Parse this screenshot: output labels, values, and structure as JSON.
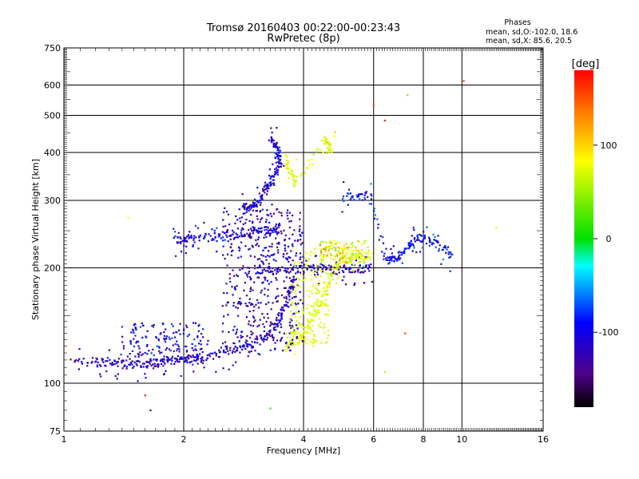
{
  "chart_data": {
    "type": "scatter",
    "title": "Tromsø 20160403 00:22:00-00:23:43",
    "subtitle": "RwPretec (8p)",
    "info_title": "Phases",
    "info_line1": "mean, sd,O:-102.0, 18.6",
    "info_line2": "mean, sd,X:  85.6, 20.5",
    "xlabel": "Frequency [MHz]",
    "ylabel": "Stationary phase Virtual Height [km]",
    "x_scale": "log",
    "y_scale": "log",
    "xlim": [
      1,
      16
    ],
    "ylim": [
      75,
      750
    ],
    "x_ticks": [
      "1",
      "2",
      "4",
      "6",
      "8",
      "10",
      "16"
    ],
    "x_tick_values": [
      1,
      2,
      4,
      6,
      8,
      10,
      16
    ],
    "y_ticks": [
      "75",
      "100",
      "200",
      "300",
      "400",
      "500",
      "600",
      "750"
    ],
    "y_tick_values": [
      75,
      100,
      200,
      300,
      400,
      500,
      600,
      750
    ],
    "grid": true,
    "colorbar": {
      "label": "[deg]",
      "range": [
        -180,
        180
      ],
      "tick_labels": [
        "100",
        "0",
        "-100"
      ],
      "tick_values": [
        100,
        0,
        -100
      ]
    },
    "traces": [
      {
        "name_hint": "O-mode lower trace",
        "phase": -110,
        "points": [
          [
            1.05,
            113
          ],
          [
            1.2,
            114
          ],
          [
            1.3,
            113
          ],
          [
            1.4,
            112
          ],
          [
            1.5,
            112
          ],
          [
            1.6,
            112
          ],
          [
            1.7,
            113
          ],
          [
            1.8,
            114
          ],
          [
            1.9,
            115
          ],
          [
            2.0,
            115
          ],
          [
            2.1,
            116
          ],
          [
            2.2,
            117
          ],
          [
            2.4,
            119
          ],
          [
            2.6,
            121
          ],
          [
            2.8,
            124
          ],
          [
            3.0,
            128
          ],
          [
            3.2,
            134
          ],
          [
            3.4,
            142
          ],
          [
            3.5,
            150
          ],
          [
            3.6,
            162
          ],
          [
            3.7,
            175
          ],
          [
            3.8,
            190
          ]
        ]
      },
      {
        "name_hint": "O-mode F-layer 200km",
        "phase": -110,
        "points": [
          [
            3.0,
            197
          ],
          [
            3.3,
            197
          ],
          [
            3.6,
            198
          ],
          [
            3.9,
            199
          ],
          [
            4.2,
            199
          ],
          [
            4.5,
            199
          ],
          [
            4.8,
            198
          ],
          [
            5.2,
            198
          ],
          [
            5.6,
            199
          ],
          [
            5.9,
            200
          ]
        ]
      },
      {
        "name_hint": "upper spread trace",
        "phase": -100,
        "points": [
          [
            1.9,
            237
          ],
          [
            2.0,
            238
          ],
          [
            2.1,
            239
          ],
          [
            2.3,
            240
          ],
          [
            2.5,
            242
          ],
          [
            2.7,
            245
          ],
          [
            2.9,
            248
          ],
          [
            3.1,
            250
          ],
          [
            3.3,
            252
          ],
          [
            3.5,
            255
          ]
        ]
      },
      {
        "name_hint": "high trace",
        "phase": -105,
        "points": [
          [
            3.3,
            430
          ],
          [
            3.4,
            420
          ],
          [
            3.45,
            400
          ],
          [
            3.5,
            380
          ],
          [
            3.4,
            350
          ],
          [
            3.3,
            330
          ],
          [
            3.2,
            320
          ],
          [
            3.1,
            300
          ],
          [
            3.0,
            290
          ],
          [
            2.9,
            288
          ],
          [
            2.8,
            287
          ]
        ]
      },
      {
        "name_hint": "X-mode trace",
        "phase": 85,
        "points": [
          [
            3.6,
            125
          ],
          [
            3.8,
            128
          ],
          [
            4.0,
            135
          ],
          [
            4.2,
            145
          ],
          [
            4.4,
            160
          ],
          [
            4.6,
            180
          ],
          [
            4.8,
            200
          ],
          [
            5.0,
            210
          ],
          [
            5.3,
            215
          ],
          [
            5.6,
            215
          ],
          [
            5.9,
            215
          ]
        ]
      },
      {
        "name_hint": "X-mode high",
        "phase": 85,
        "points": [
          [
            3.6,
            390
          ],
          [
            3.7,
            360
          ],
          [
            3.8,
            330
          ],
          [
            4.5,
            430
          ],
          [
            4.6,
            420
          ],
          [
            4.7,
            410
          ]
        ]
      },
      {
        "name_hint": "mixed upper",
        "phase": -90,
        "points": [
          [
            5.0,
            305
          ],
          [
            5.5,
            307
          ],
          [
            5.9,
            310
          ],
          [
            6.4,
            210
          ],
          [
            6.7,
            210
          ],
          [
            7.0,
            215
          ],
          [
            7.4,
            230
          ],
          [
            7.8,
            240
          ],
          [
            8.4,
            235
          ],
          [
            9.0,
            225
          ],
          [
            9.5,
            213
          ]
        ]
      }
    ],
    "outliers": [
      {
        "x": 1.45,
        "y": 270,
        "phase": 95
      },
      {
        "x": 1.6,
        "y": 93,
        "phase": 170
      },
      {
        "x": 1.65,
        "y": 85,
        "phase": -120
      },
      {
        "x": 3.3,
        "y": 86,
        "phase": 15
      },
      {
        "x": 6.0,
        "y": 530,
        "phase": 150
      },
      {
        "x": 6.4,
        "y": 485,
        "phase": 170
      },
      {
        "x": 7.3,
        "y": 565,
        "phase": 120
      },
      {
        "x": 10.1,
        "y": 615,
        "phase": 160
      },
      {
        "x": 12.2,
        "y": 255,
        "phase": 80
      },
      {
        "x": 6.4,
        "y": 107,
        "phase": 110
      },
      {
        "x": 7.2,
        "y": 135,
        "phase": 150
      }
    ]
  }
}
